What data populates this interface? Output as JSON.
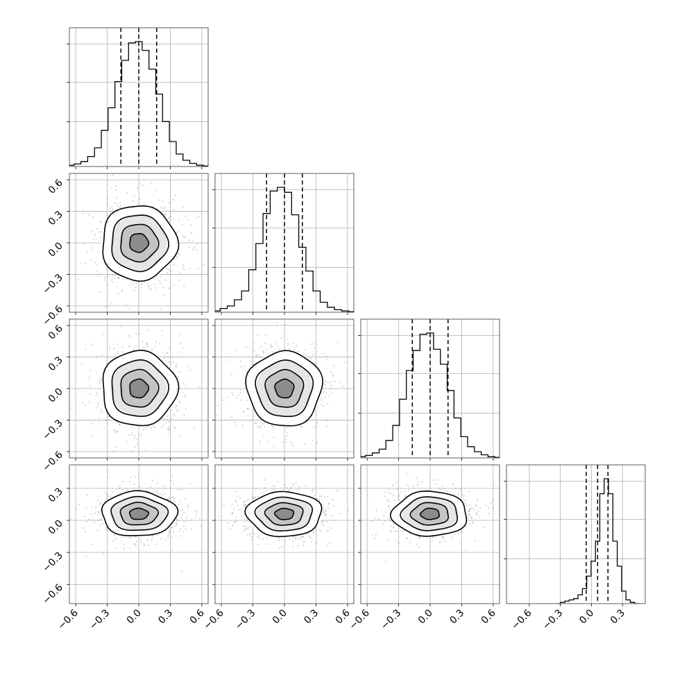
{
  "chart_data": {
    "type": "corner",
    "n_params": 4,
    "grid": true,
    "marginal_ticks": [
      -0.6,
      -0.3,
      0.0,
      0.3,
      0.6
    ],
    "marginal_tick_labels": [
      "−0.6",
      "−0.3",
      "0.0",
      "0.3",
      "0.6"
    ],
    "marginal_xlim": [
      -0.66,
      0.66
    ],
    "last_param": {
      "xlim": [
        -0.82,
        0.52
      ],
      "ticks": [
        -0.6,
        -0.3,
        0.0,
        0.3
      ],
      "tick_labels": [
        "−0.6",
        "−0.3",
        "0.0",
        "0.3"
      ],
      "ylim": [
        -0.78,
        0.52
      ],
      "y_ticks": [
        -0.6,
        -0.3,
        0.0,
        0.3
      ],
      "y_tick_labels": [
        "−0.6",
        "−0.3",
        "0.0",
        "0.3"
      ]
    },
    "parameters": [
      {
        "mean": 0.0,
        "std": 0.17,
        "quantiles": [
          -0.17,
          0.0,
          0.17
        ]
      },
      {
        "mean": 0.0,
        "std": 0.17,
        "quantiles": [
          -0.17,
          0.0,
          0.17
        ]
      },
      {
        "mean": 0.0,
        "std": 0.17,
        "quantiles": [
          -0.17,
          0.0,
          0.17
        ]
      },
      {
        "mean": 0.06,
        "std": 0.1,
        "quantiles": [
          -0.05,
          0.06,
          0.16
        ]
      }
    ],
    "contour_levels_sigma": [
      0.5,
      1.0,
      1.5,
      2.0
    ],
    "histograms": [
      {
        "param": 1,
        "counts": [
          0.01,
          0.02,
          0.04,
          0.08,
          0.15,
          0.29,
          0.47,
          0.68,
          0.85,
          0.99,
          1.0,
          0.93,
          0.78,
          0.58,
          0.36,
          0.2,
          0.1,
          0.05,
          0.025,
          0.01,
          0.004
        ]
      },
      {
        "param": 2,
        "counts": [
          0.01,
          0.03,
          0.05,
          0.1,
          0.17,
          0.34,
          0.55,
          0.79,
          0.97,
          1.0,
          0.96,
          0.78,
          0.52,
          0.33,
          0.17,
          0.08,
          0.04,
          0.02,
          0.01,
          0.004
        ]
      },
      {
        "param": 3,
        "counts": [
          0.01,
          0.02,
          0.04,
          0.07,
          0.14,
          0.26,
          0.47,
          0.7,
          0.86,
          0.99,
          1.0,
          0.87,
          0.75,
          0.54,
          0.32,
          0.17,
          0.09,
          0.05,
          0.025,
          0.01,
          0.004
        ]
      },
      {
        "param": 4,
        "counts": [
          0.0,
          0.01,
          0.02,
          0.03,
          0.04,
          0.07,
          0.12,
          0.22,
          0.34,
          0.5,
          0.88,
          1.0,
          0.88,
          0.5,
          0.3,
          0.1,
          0.03,
          0.01,
          0.0
        ]
      }
    ]
  }
}
